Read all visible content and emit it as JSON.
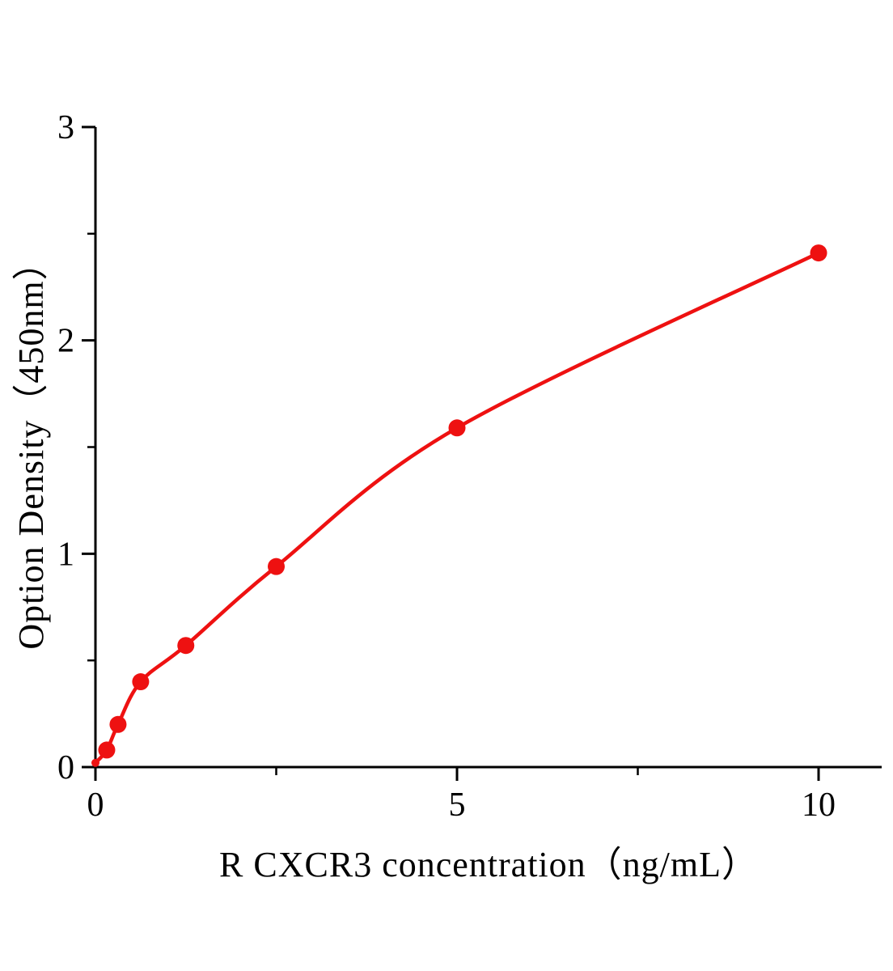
{
  "accent_color": "#ee1111",
  "chart_data": {
    "type": "scatter",
    "subtype": "standard-curve-with-fit-line",
    "title": "",
    "xlabel": "R CXCR3  concentration（ng/mL）",
    "ylabel": "Option Density（450nm）",
    "x": [
      0,
      0.156,
      0.3125,
      0.625,
      1.25,
      2.5,
      5,
      10
    ],
    "y": [
      0.02,
      0.08,
      0.2,
      0.4,
      0.57,
      0.94,
      1.59,
      2.41
    ],
    "xlim": [
      0,
      10.9
    ],
    "ylim": [
      0,
      3
    ],
    "x_major_ticks": [
      {
        "value": 0,
        "label": "0"
      },
      {
        "value": 5,
        "label": "5"
      },
      {
        "value": 10,
        "label": "10"
      }
    ],
    "x_minor_ticks": [
      2.5,
      7.5
    ],
    "y_major_ticks": [
      {
        "value": 0,
        "label": "0"
      },
      {
        "value": 1,
        "label": "1"
      },
      {
        "value": 2,
        "label": "2"
      },
      {
        "value": 3,
        "label": "3"
      }
    ],
    "y_minor_ticks": [
      0.5,
      1.5,
      2.5
    ],
    "point_color": "#ee1111",
    "line_color": "#ee1111",
    "axis_color": "#000000",
    "grid": false,
    "legend": false
  }
}
